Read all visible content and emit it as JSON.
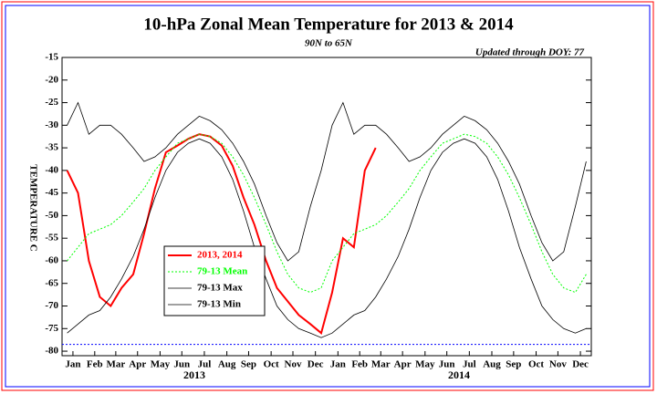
{
  "chart_data": {
    "type": "line",
    "title": "10-hPa Zonal Mean Temperature for 2013 & 2014",
    "subtitle": "90N to 65N",
    "annotation": "Updated through DOY:  77",
    "y_label": "TEMPERATURE C",
    "x_group_labels": [
      "2013",
      "2014"
    ],
    "xlim": [
      1,
      730
    ],
    "ylim": [
      -81,
      -15
    ],
    "yticks": [
      -15,
      -20,
      -25,
      -30,
      -35,
      -40,
      -45,
      -50,
      -55,
      -60,
      -65,
      -70,
      -75,
      -80
    ],
    "xticks": [
      {
        "value": 16,
        "label": "Jan"
      },
      {
        "value": 46,
        "label": "Feb"
      },
      {
        "value": 75,
        "label": "Mar"
      },
      {
        "value": 105,
        "label": "Apr"
      },
      {
        "value": 136,
        "label": "May"
      },
      {
        "value": 166,
        "label": "Jun"
      },
      {
        "value": 197,
        "label": "Jul"
      },
      {
        "value": 228,
        "label": "Aug"
      },
      {
        "value": 258,
        "label": "Sep"
      },
      {
        "value": 289,
        "label": "Oct"
      },
      {
        "value": 319,
        "label": "Nov"
      },
      {
        "value": 350,
        "label": "Dec"
      },
      {
        "value": 381,
        "label": "Jan"
      },
      {
        "value": 411,
        "label": "Feb"
      },
      {
        "value": 440,
        "label": "Mar"
      },
      {
        "value": 470,
        "label": "Apr"
      },
      {
        "value": 501,
        "label": "May"
      },
      {
        "value": 531,
        "label": "Jun"
      },
      {
        "value": 562,
        "label": "Jul"
      },
      {
        "value": 593,
        "label": "Aug"
      },
      {
        "value": 623,
        "label": "Sep"
      },
      {
        "value": 654,
        "label": "Oct"
      },
      {
        "value": 684,
        "label": "Nov"
      },
      {
        "value": 715,
        "label": "Dec"
      }
    ],
    "reference_line": -78.5,
    "legend": "lower-left",
    "x": [
      8,
      23,
      38,
      53,
      68,
      83,
      99,
      114,
      129,
      144,
      160,
      175,
      190,
      205,
      221,
      236,
      251,
      266,
      282,
      297,
      312,
      327,
      343,
      358,
      373,
      388,
      403,
      418,
      433,
      448,
      464,
      479,
      494,
      509,
      525,
      540,
      555,
      570,
      586,
      601,
      616,
      631,
      647,
      662,
      677,
      692,
      708,
      723
    ],
    "series": [
      {
        "name": "2013, 2014",
        "color": "#ff0000",
        "width": 2,
        "dash": "none",
        "values": [
          -40,
          -45,
          -60,
          -68,
          -70,
          -66,
          -63,
          -54,
          -44,
          -36,
          -34.5,
          -33,
          -32,
          -32.5,
          -34.5,
          -39,
          -46,
          -52,
          -60,
          -66,
          -69,
          -72,
          -74,
          -76,
          -67,
          -55,
          -57,
          -40,
          -35,
          null,
          null,
          null,
          null,
          null,
          null,
          null,
          null,
          null,
          null,
          null,
          null,
          null,
          null,
          null,
          null,
          null,
          null,
          null
        ]
      },
      {
        "name": "79-13 Mean",
        "color": "#00ff00",
        "width": 1,
        "dash": "2,2",
        "values": [
          -60,
          -57,
          -54,
          -53,
          -52,
          -50,
          -47,
          -44,
          -40,
          -37,
          -34,
          -33,
          -32,
          -32.5,
          -34,
          -37,
          -41,
          -46,
          -52,
          -58,
          -63,
          -66,
          -67,
          -66,
          -60,
          -57,
          -54,
          -53,
          -52,
          -50,
          -47,
          -44,
          -40,
          -37,
          -34,
          -33,
          -32,
          -32.5,
          -34,
          -37,
          -41,
          -46,
          -52,
          -58,
          -63,
          -66,
          -67,
          -63
        ]
      },
      {
        "name": "79-13 Max",
        "color": "#000000",
        "width": 0.8,
        "dash": "none",
        "values": [
          -30,
          -25,
          -32,
          -30,
          -30,
          -32,
          -35,
          -38,
          -37,
          -35,
          -32,
          -30,
          -28,
          -29,
          -31,
          -34,
          -38,
          -43,
          -50,
          -56,
          -60,
          -58,
          -48,
          -40,
          -30,
          -25,
          -32,
          -30,
          -30,
          -32,
          -35,
          -38,
          -37,
          -35,
          -32,
          -30,
          -28,
          -29,
          -31,
          -34,
          -38,
          -43,
          -50,
          -56,
          -60,
          -58,
          -48,
          -38
        ]
      },
      {
        "name": "79-13 Min",
        "color": "#000000",
        "width": 0.8,
        "dash": "none",
        "values": [
          -76,
          -74,
          -72,
          -71,
          -68,
          -64,
          -59,
          -53,
          -46,
          -40,
          -36,
          -34,
          -33,
          -34,
          -37,
          -42,
          -49,
          -57,
          -64,
          -70,
          -73,
          -75,
          -76,
          -77,
          -76,
          -74,
          -72,
          -71,
          -68,
          -64,
          -59,
          -53,
          -46,
          -40,
          -36,
          -34,
          -33,
          -34,
          -37,
          -42,
          -49,
          -57,
          -64,
          -70,
          -73,
          -75,
          -76,
          -75
        ]
      }
    ]
  }
}
